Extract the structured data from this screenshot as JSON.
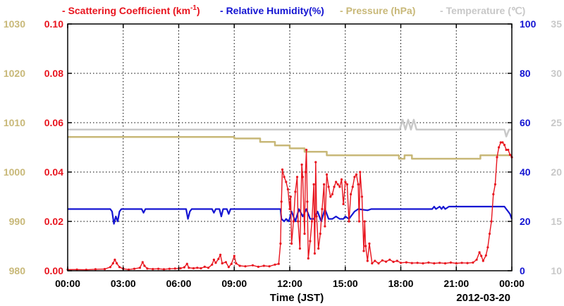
{
  "chart_data": {
    "type": "line",
    "legend": [
      {
        "dash": "-",
        "label": "Scattering Coefficient (km",
        "sup": "-1",
        "tail": ")",
        "color": "#e8141e"
      },
      {
        "dash": "-",
        "label": "Relative Humidity(%)",
        "color": "#1414d2"
      },
      {
        "dash": "-",
        "label": "Pressure (hPa)",
        "color": "#c8b878"
      },
      {
        "dash": "-",
        "label": "Temperature (℃)",
        "color": "#c8c8c8"
      }
    ],
    "xlabel": "Time (JST)",
    "date_label": "2012-03-20",
    "x_ticks": [
      "00:00",
      "03:00",
      "06:00",
      "09:00",
      "12:00",
      "15:00",
      "18:00",
      "21:00",
      "00:00"
    ],
    "xlim_hours": [
      0,
      24
    ],
    "grid": true,
    "axes": {
      "pressure": {
        "color": "#c8b878",
        "ticks": [
          "980",
          "990",
          "1000",
          "1010",
          "1020",
          "1030"
        ],
        "ylim": [
          980,
          1030
        ]
      },
      "scattering": {
        "color": "#e8141e",
        "ticks": [
          "0.00",
          "0.02",
          "0.04",
          "0.06",
          "0.08",
          "0.10"
        ],
        "ylim": [
          0,
          0.1
        ]
      },
      "humidity": {
        "color": "#1414d2",
        "ticks": [
          "0",
          "20",
          "40",
          "60",
          "80",
          "100"
        ],
        "ylim": [
          0,
          100
        ]
      },
      "temperature": {
        "color": "#c8c8c8",
        "ticks": [
          "10",
          "15",
          "20",
          "25",
          "30",
          "35"
        ],
        "ylim": [
          10,
          35
        ]
      }
    },
    "series": [
      {
        "name": "Pressure (hPa)",
        "axis": "pressure",
        "color": "#c8b878",
        "points": [
          [
            0,
            1007.1
          ],
          [
            9.0,
            1007.1
          ],
          [
            9.0,
            1006.8
          ],
          [
            10.4,
            1006.8
          ],
          [
            10.4,
            1006.1
          ],
          [
            11.2,
            1006.1
          ],
          [
            11.2,
            1005.4
          ],
          [
            12.0,
            1005.4
          ],
          [
            12.0,
            1004.8
          ],
          [
            12.8,
            1004.8
          ],
          [
            12.8,
            1004.1
          ],
          [
            14.0,
            1004.1
          ],
          [
            14.0,
            1003.4
          ],
          [
            17.9,
            1003.4
          ],
          [
            17.9,
            1002.7
          ],
          [
            18.2,
            1002.7
          ],
          [
            18.2,
            1003.4
          ],
          [
            18.6,
            1003.4
          ],
          [
            18.6,
            1002.7
          ],
          [
            22.3,
            1002.7
          ],
          [
            22.3,
            1003.4
          ],
          [
            24,
            1003.4
          ]
        ]
      },
      {
        "name": "Temperature (℃)",
        "axis": "temperature",
        "color": "#c8c8c8",
        "points": [
          [
            0,
            24.3
          ],
          [
            17.95,
            24.3
          ],
          [
            18.1,
            25.3
          ],
          [
            18.25,
            24.3
          ],
          [
            18.4,
            25.3
          ],
          [
            18.55,
            24.3
          ],
          [
            18.7,
            25.3
          ],
          [
            18.85,
            24.3
          ],
          [
            23.6,
            24.3
          ],
          [
            23.7,
            23.6
          ],
          [
            23.85,
            24.3
          ],
          [
            24,
            24.3
          ]
        ]
      },
      {
        "name": "Relative Humidity(%)",
        "axis": "humidity",
        "color": "#1414d2",
        "points": [
          [
            0,
            25
          ],
          [
            2.3,
            25
          ],
          [
            2.4,
            24
          ],
          [
            2.5,
            19
          ],
          [
            2.6,
            22
          ],
          [
            2.7,
            20
          ],
          [
            2.8,
            24
          ],
          [
            2.9,
            25
          ],
          [
            4.0,
            25
          ],
          [
            4.1,
            23.5
          ],
          [
            4.2,
            25
          ],
          [
            6.4,
            25
          ],
          [
            6.5,
            21
          ],
          [
            6.6,
            24
          ],
          [
            6.7,
            25
          ],
          [
            7.8,
            25
          ],
          [
            7.9,
            23.5
          ],
          [
            8.0,
            25
          ],
          [
            8.2,
            25
          ],
          [
            8.3,
            22
          ],
          [
            8.4,
            25
          ],
          [
            8.6,
            25
          ],
          [
            8.7,
            23
          ],
          [
            8.8,
            25
          ],
          [
            11.5,
            25
          ],
          [
            11.55,
            21
          ],
          [
            11.7,
            20
          ],
          [
            11.8,
            21
          ],
          [
            11.95,
            20
          ],
          [
            12.1,
            24
          ],
          [
            12.3,
            20
          ],
          [
            12.5,
            25
          ],
          [
            12.7,
            22
          ],
          [
            12.9,
            25
          ],
          [
            13.1,
            21
          ],
          [
            13.3,
            21
          ],
          [
            13.5,
            24
          ],
          [
            13.7,
            20
          ],
          [
            13.9,
            25
          ],
          [
            14.1,
            21
          ],
          [
            14.3,
            21
          ],
          [
            14.5,
            22
          ],
          [
            14.7,
            21
          ],
          [
            14.9,
            21
          ],
          [
            15.0,
            22
          ],
          [
            15.2,
            21
          ],
          [
            15.3,
            22
          ],
          [
            15.5,
            24
          ],
          [
            15.7,
            25
          ],
          [
            16.2,
            24.5
          ],
          [
            16.4,
            25
          ],
          [
            19.7,
            25
          ],
          [
            19.8,
            26
          ],
          [
            19.9,
            25
          ],
          [
            20.1,
            26
          ],
          [
            20.2,
            25
          ],
          [
            20.3,
            26
          ],
          [
            20.4,
            25
          ],
          [
            20.6,
            26
          ],
          [
            23.6,
            26
          ],
          [
            23.7,
            25
          ],
          [
            23.8,
            24
          ],
          [
            23.9,
            23
          ],
          [
            24,
            21
          ]
        ]
      },
      {
        "name": "Scattering Coefficient",
        "axis": "scattering",
        "color": "#e8141e",
        "points": [
          [
            0,
            0.0005
          ],
          [
            0.5,
            0.0005
          ],
          [
            1.0,
            0.0004
          ],
          [
            1.5,
            0.0006
          ],
          [
            2.0,
            0.0007
          ],
          [
            2.3,
            0.0015
          ],
          [
            2.45,
            0.003
          ],
          [
            2.55,
            0.0045
          ],
          [
            2.65,
            0.003
          ],
          [
            2.8,
            0.0015
          ],
          [
            3.0,
            0.0008
          ],
          [
            3.3,
            0.0005
          ],
          [
            3.6,
            0.0008
          ],
          [
            3.9,
            0.0012
          ],
          [
            4.05,
            0.0035
          ],
          [
            4.15,
            0.002
          ],
          [
            4.3,
            0.0009
          ],
          [
            4.6,
            0.0007
          ],
          [
            4.9,
            0.0008
          ],
          [
            5.2,
            0.0006
          ],
          [
            5.5,
            0.0008
          ],
          [
            5.8,
            0.0009
          ],
          [
            6.1,
            0.001
          ],
          [
            6.3,
            0.0014
          ],
          [
            6.45,
            0.0028
          ],
          [
            6.55,
            0.0012
          ],
          [
            6.8,
            0.001
          ],
          [
            7.0,
            0.0012
          ],
          [
            7.2,
            0.001
          ],
          [
            7.4,
            0.0016
          ],
          [
            7.6,
            0.0012
          ],
          [
            7.8,
            0.0025
          ],
          [
            7.9,
            0.0045
          ],
          [
            8.0,
            0.0032
          ],
          [
            8.15,
            0.0048
          ],
          [
            8.25,
            0.0065
          ],
          [
            8.35,
            0.003
          ],
          [
            8.55,
            0.0035
          ],
          [
            8.7,
            0.0015
          ],
          [
            8.85,
            0.0028
          ],
          [
            9.0,
            0.006
          ],
          [
            9.1,
            0.003
          ],
          [
            9.3,
            0.002
          ],
          [
            9.6,
            0.0018
          ],
          [
            10.0,
            0.0022
          ],
          [
            10.3,
            0.0016
          ],
          [
            10.6,
            0.002
          ],
          [
            10.9,
            0.0018
          ],
          [
            11.2,
            0.0025
          ],
          [
            11.4,
            0.0028
          ],
          [
            11.5,
            0.011
          ],
          [
            11.55,
            0.028
          ],
          [
            11.6,
            0.041
          ],
          [
            11.7,
            0.038
          ],
          [
            11.8,
            0.036
          ],
          [
            11.9,
            0.033
          ],
          [
            12.0,
            0.025
          ],
          [
            12.05,
            0.03
          ],
          [
            12.1,
            0.011
          ],
          [
            12.2,
            0.02
          ],
          [
            12.3,
            0.032
          ],
          [
            12.4,
            0.038
          ],
          [
            12.45,
            0.02
          ],
          [
            12.55,
            0.009
          ],
          [
            12.65,
            0.043
          ],
          [
            12.7,
            0.038
          ],
          [
            12.8,
            0.015
          ],
          [
            12.85,
            0.04
          ],
          [
            12.9,
            0.049
          ],
          [
            12.95,
            0.028
          ],
          [
            13.0,
            0.005
          ],
          [
            13.1,
            0.012
          ],
          [
            13.2,
            0.02
          ],
          [
            13.3,
            0.035
          ],
          [
            13.35,
            0.007
          ],
          [
            13.4,
            0.044
          ],
          [
            13.45,
            0.022
          ],
          [
            13.55,
            0.009
          ],
          [
            13.65,
            0.015
          ],
          [
            13.75,
            0.025
          ],
          [
            13.85,
            0.035
          ],
          [
            13.9,
            0.018
          ],
          [
            14.0,
            0.039
          ],
          [
            14.1,
            0.034
          ],
          [
            14.2,
            0.03
          ],
          [
            14.3,
            0.031
          ],
          [
            14.4,
            0.034
          ],
          [
            14.5,
            0.036
          ],
          [
            14.6,
            0.035
          ],
          [
            14.7,
            0.034
          ],
          [
            14.8,
            0.037
          ],
          [
            14.9,
            0.027
          ],
          [
            15.0,
            0.036
          ],
          [
            15.1,
            0.035
          ],
          [
            15.2,
            0.02
          ],
          [
            15.3,
            0.031
          ],
          [
            15.4,
            0.034
          ],
          [
            15.5,
            0.038
          ],
          [
            15.6,
            0.039
          ],
          [
            15.7,
            0.035
          ],
          [
            15.75,
            0.02
          ],
          [
            15.8,
            0.04
          ],
          [
            15.9,
            0.03
          ],
          [
            16.0,
            0.008
          ],
          [
            16.05,
            0.02
          ],
          [
            16.1,
            0.01
          ],
          [
            16.2,
            0.004
          ],
          [
            16.3,
            0.011
          ],
          [
            16.45,
            0.003
          ],
          [
            16.6,
            0.004
          ],
          [
            16.8,
            0.003
          ],
          [
            17.0,
            0.0042
          ],
          [
            17.2,
            0.0037
          ],
          [
            17.4,
            0.0045
          ],
          [
            17.6,
            0.0036
          ],
          [
            17.8,
            0.004
          ],
          [
            18.0,
            0.0032
          ],
          [
            18.3,
            0.0034
          ],
          [
            18.6,
            0.0031
          ],
          [
            18.9,
            0.0032
          ],
          [
            19.2,
            0.003
          ],
          [
            19.5,
            0.0033
          ],
          [
            19.8,
            0.003
          ],
          [
            20.1,
            0.0032
          ],
          [
            20.4,
            0.003
          ],
          [
            20.7,
            0.0033
          ],
          [
            21.0,
            0.003
          ],
          [
            21.3,
            0.0032
          ],
          [
            21.6,
            0.0031
          ],
          [
            21.9,
            0.0033
          ],
          [
            22.1,
            0.0045
          ],
          [
            22.25,
            0.0075
          ],
          [
            22.35,
            0.006
          ],
          [
            22.45,
            0.004
          ],
          [
            22.6,
            0.0062
          ],
          [
            22.7,
            0.0095
          ],
          [
            22.8,
            0.015
          ],
          [
            22.9,
            0.02
          ],
          [
            23.0,
            0.031
          ],
          [
            23.1,
            0.035
          ],
          [
            23.2,
            0.046
          ],
          [
            23.3,
            0.05
          ],
          [
            23.4,
            0.052
          ],
          [
            23.5,
            0.052
          ],
          [
            23.6,
            0.051
          ],
          [
            23.7,
            0.049
          ],
          [
            23.8,
            0.049
          ],
          [
            23.9,
            0.047
          ],
          [
            24,
            0.046
          ]
        ]
      }
    ]
  }
}
